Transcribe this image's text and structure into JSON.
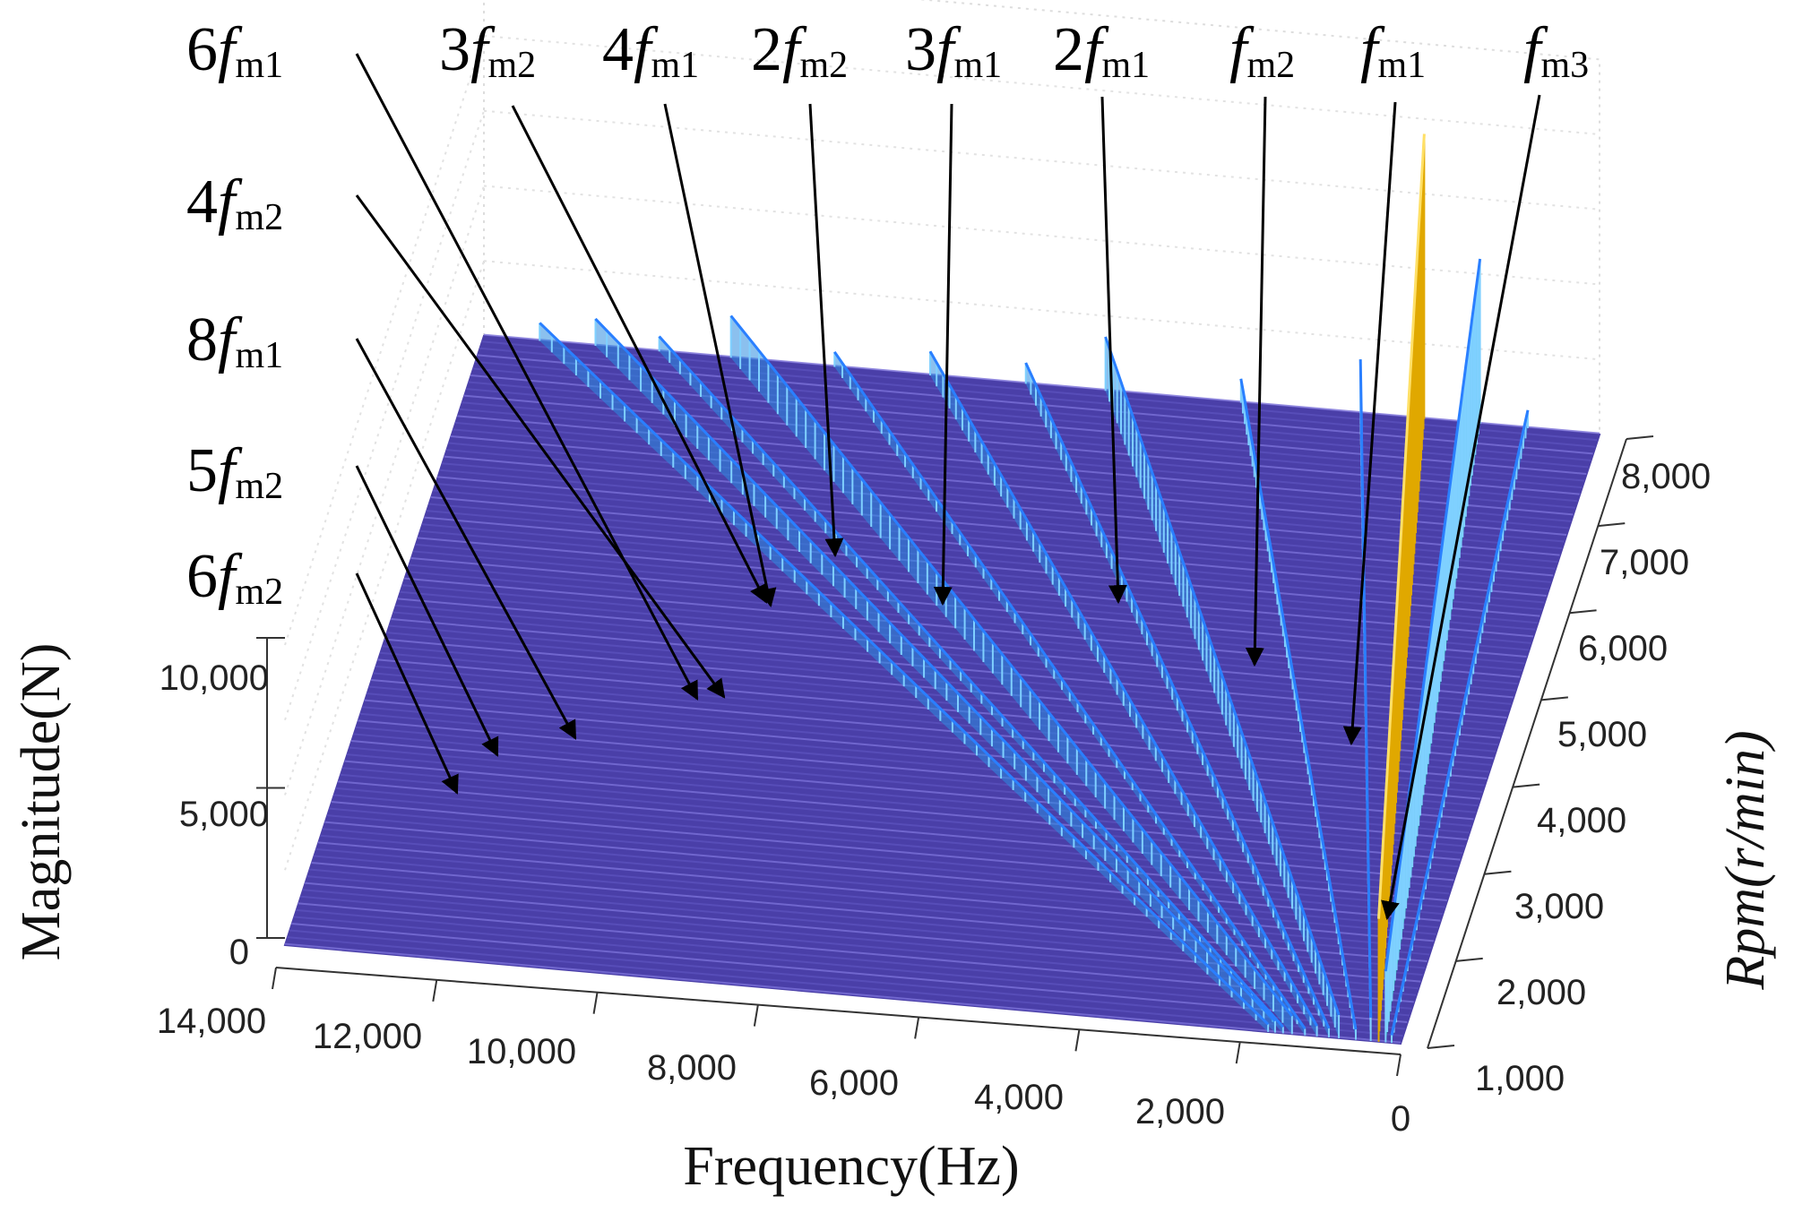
{
  "chart_data": {
    "type": "waterfall-3d",
    "title": "",
    "xlabel": "Frequency(Hz)",
    "ylabel": "Rpm(r/min)",
    "zlabel": "Magnitude(N)",
    "x_ticks": [
      "14,000",
      "12,000",
      "10,000",
      "8,000",
      "6,000",
      "4,000",
      "2,000",
      "0"
    ],
    "y_ticks": [
      "1,000",
      "2,000",
      "3,000",
      "4,000",
      "5,000",
      "6,000",
      "7,000",
      "8,000"
    ],
    "z_ticks": [
      "0",
      "5,000",
      "10,000"
    ],
    "xlim": [
      0,
      14000
    ],
    "ylim": [
      1000,
      8000
    ],
    "zlim": [
      0,
      10000
    ],
    "orders": [
      {
        "coef": "",
        "sym": "f",
        "sub": "m3",
        "freq_at_8000": 900,
        "peak_at_8000": 600
      },
      {
        "coef": "",
        "sym": "f",
        "sub": "m1",
        "freq_at_8000": 1500,
        "peak_at_8000": 5500
      },
      {
        "coef": "",
        "sym": "f",
        "sub": "m2",
        "freq_at_8000": 2200,
        "peak_at_8000": 9500
      },
      {
        "coef": "2",
        "sym": "f",
        "sub": "m1",
        "freq_at_8000": 3000,
        "peak_at_8000": 1800
      },
      {
        "coef": "3",
        "sym": "f",
        "sub": "m1",
        "freq_at_8000": 4500,
        "peak_at_8000": 800
      },
      {
        "coef": "2",
        "sym": "f",
        "sub": "m2",
        "freq_at_8000": 6200,
        "peak_at_8000": 1800
      },
      {
        "coef": "4",
        "sym": "f",
        "sub": "m1",
        "freq_at_8000": 7200,
        "peak_at_8000": 700
      },
      {
        "coef": "3",
        "sym": "f",
        "sub": "m2",
        "freq_at_8000": 8400,
        "peak_at_8000": 800
      },
      {
        "coef": "6",
        "sym": "f",
        "sub": "m1",
        "freq_at_8000": 9600,
        "peak_at_8000": 500
      },
      {
        "coef": "4",
        "sym": "f",
        "sub": "m2",
        "freq_at_8000": 10900,
        "peak_at_8000": 1400
      },
      {
        "coef": "8",
        "sym": "f",
        "sub": "m1",
        "freq_at_8000": 11800,
        "peak_at_8000": 500
      },
      {
        "coef": "5",
        "sym": "f",
        "sub": "m2",
        "freq_at_8000": 12600,
        "peak_at_8000": 900
      },
      {
        "coef": "6",
        "sym": "f",
        "sub": "m2",
        "freq_at_8000": 13300,
        "peak_at_8000": 600
      }
    ],
    "annotations": [
      {
        "coef": "6",
        "sym": "f",
        "sub": "m1"
      },
      {
        "coef": "3",
        "sym": "f",
        "sub": "m2"
      },
      {
        "coef": "4",
        "sym": "f",
        "sub": "m1"
      },
      {
        "coef": "2",
        "sym": "f",
        "sub": "m2"
      },
      {
        "coef": "3",
        "sym": "f",
        "sub": "m1"
      },
      {
        "coef": "2",
        "sym": "f",
        "sub": "m1"
      },
      {
        "coef": "",
        "sym": "f",
        "sub": "m2"
      },
      {
        "coef": "",
        "sym": "f",
        "sub": "m1"
      },
      {
        "coef": "",
        "sym": "f",
        "sub": "m3"
      },
      {
        "coef": "4",
        "sym": "f",
        "sub": "m2"
      },
      {
        "coef": "8",
        "sym": "f",
        "sub": "m1"
      },
      {
        "coef": "5",
        "sym": "f",
        "sub": "m2"
      },
      {
        "coef": "6",
        "sym": "f",
        "sub": "m2"
      }
    ],
    "colors": {
      "surface": "#4a3fa8",
      "surface_line": "#7a70d8",
      "ridge_low": "#2b8ce0",
      "ridge_mid": "#19b3a0",
      "ridge_high": "#f2c21a",
      "axis": "#333333"
    }
  }
}
